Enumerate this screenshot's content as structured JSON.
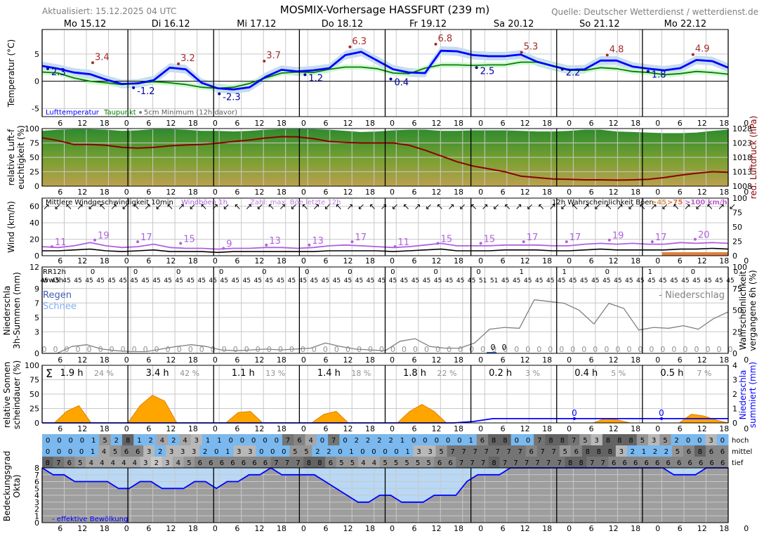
{
  "header": {
    "updated": "Aktualisiert: 15.12.2025 04 UTC",
    "title": "MOSMIX-Vorhersage HASSFURT (239 m)",
    "source": "Quelle: Deutscher Wetterdienst / wetterdienst.de"
  },
  "days": [
    "Mo 15.12",
    "Di 16.12",
    "Mi 17.12",
    "Do 18.12",
    "Fr 19.12",
    "Sa 20.12",
    "So 21.12",
    "Mo 22.12"
  ],
  "hour_ticks": [
    "6",
    "12",
    "18",
    "0",
    "6",
    "12",
    "18",
    "0",
    "6",
    "12",
    "18",
    "0",
    "6",
    "12",
    "18",
    "0",
    "6",
    "12",
    "18",
    "0",
    "6",
    "12",
    "18",
    "0",
    "6",
    "12",
    "18",
    "0",
    "6",
    "12",
    "18",
    "0"
  ],
  "colors": {
    "temp": "#0000ff",
    "dew": "#008000",
    "max": "#a52a2a",
    "min": "#0000a0",
    "pressure": "#8b0000",
    "gust": "#b060e0",
    "precip_line": "#808080",
    "sun": "#ffa500",
    "cloud_eff": "#0000ff"
  },
  "chart_data": [
    {
      "panel": "temperature",
      "type": "line",
      "ylabel": "Temperatur (°C)",
      "ylim": [
        -6.5,
        9.5
      ],
      "yticks": [
        "5",
        "0",
        "-5"
      ],
      "legend": {
        "temp": "Lufttemperatur",
        "dew": "Taupunkt",
        "min5cm": "5cm Minimum (12h davor)"
      },
      "series": [
        {
          "name": "Lufttemperatur",
          "values": [
            2.8,
            2.3,
            1.6,
            1.3,
            0.3,
            -0.5,
            -0.4,
            0.2,
            2.5,
            2.2,
            -0.3,
            -1.3,
            -1.5,
            -1.1,
            0.8,
            2.1,
            1.8,
            2.0,
            2.4,
            4.8,
            5.4,
            3.8,
            2.2,
            1.6,
            1.5,
            5.6,
            5.5,
            4.8,
            4.6,
            4.6,
            4.9,
            3.6,
            2.8,
            2.1,
            2.2,
            3.8,
            3.8,
            2.7,
            2.3,
            2.0,
            2.4,
            3.9,
            3.7,
            2.5
          ]
        },
        {
          "name": "Taupunkt",
          "values": [
            1.7,
            1.5,
            0.6,
            0.0,
            -0.3,
            -0.6,
            -0.3,
            -0.1,
            -0.3,
            -0.6,
            -1.1,
            -1.3,
            -1.1,
            -0.4,
            0.6,
            1.5,
            1.7,
            1.6,
            2.2,
            2.6,
            2.6,
            2.3,
            1.5,
            1.4,
            2.4,
            3.0,
            3.0,
            2.9,
            3.0,
            3.0,
            3.5,
            3.5,
            2.8,
            2.0,
            2.0,
            2.5,
            2.3,
            1.8,
            1.6,
            1.2,
            1.4,
            1.8,
            1.6,
            1.3
          ]
        }
      ],
      "max_labels": [
        "3.4",
        "3.2",
        "3.7",
        "6.3",
        "6.8",
        "5.3",
        "4.8",
        "4.9"
      ],
      "min_labels": [
        "2.3",
        "-1.2",
        "-2.3",
        "1.2",
        "0.4",
        "2.5",
        "2.2",
        "1.8"
      ]
    },
    {
      "panel": "humidity_pressure",
      "type": "area",
      "ylabel": "relative Luft-feuchtigkeit (%)",
      "y2label": "red. Luftdruck (hPa)",
      "ylim": [
        0,
        100
      ],
      "y2lim": [
        1008,
        1028
      ],
      "yticks": [
        "100",
        "75",
        "50",
        "25",
        "0"
      ],
      "y2ticks": [
        "1028",
        "1023",
        "1018",
        "1013",
        "1008"
      ],
      "series": [
        {
          "name": "rel. Feuchte",
          "values": [
            96,
            98,
            99,
            99,
            98,
            96,
            97,
            99,
            99,
            98,
            96,
            96,
            95,
            96,
            98,
            99,
            99,
            99,
            98,
            96,
            94,
            95,
            97,
            98,
            98,
            96,
            96,
            97,
            97,
            97,
            96,
            95,
            95,
            96,
            98,
            98,
            95,
            94,
            93,
            92,
            92,
            93,
            96,
            98
          ]
        },
        {
          "name": "Luftdruck",
          "values": [
            1024.8,
            1023.8,
            1022.5,
            1022.5,
            1022.2,
            1021.5,
            1021.2,
            1021.5,
            1022.0,
            1022.3,
            1022.5,
            1022.9,
            1023.5,
            1024.0,
            1024.7,
            1025.2,
            1025.1,
            1024.5,
            1023.5,
            1023.2,
            1023.0,
            1023.0,
            1023.0,
            1022.2,
            1020.5,
            1018.5,
            1016.5,
            1015.0,
            1014.0,
            1013.0,
            1011.5,
            1011.0,
            1010.5,
            1010.4,
            1010.2,
            1010.2,
            1010.1,
            1010.2,
            1010.4,
            1011.0,
            1011.8,
            1012.5,
            1013.0,
            1012.8
          ]
        }
      ]
    },
    {
      "panel": "wind",
      "type": "line",
      "ylabel": "Wind (km/h)",
      "ylim": [
        0,
        70
      ],
      "yticks": [
        "60",
        "40",
        "20",
        "0"
      ],
      "y2ticks": [
        "100",
        "75",
        "50",
        "25",
        "0"
      ],
      "legend": {
        "mean": "Mittlere Windgeschwindigkeit 10min",
        "gust": "Windböen 1h",
        "zahl": "Zahl: max. Böe letzte 12h",
        "prob": "12h Wahrscheinlichkeit Böen",
        "thresholds": [
          ">45",
          ">75",
          ">100 km/h"
        ]
      },
      "series": [
        {
          "name": "Windböen 1h",
          "values": [
            11,
            10,
            12,
            16,
            12,
            10,
            11,
            14,
            10,
            9,
            9,
            8,
            9,
            9,
            10,
            10,
            9,
            10,
            12,
            13,
            12,
            11,
            10,
            11,
            13,
            15,
            12,
            12,
            12,
            13,
            13,
            13,
            12,
            12,
            14,
            15,
            14,
            15,
            14,
            14,
            16,
            15,
            16,
            15
          ]
        },
        {
          "name": "Mittlere Windgeschwindigkeit",
          "values": [
            6,
            6,
            7,
            8,
            6,
            5,
            6,
            7,
            5,
            5,
            5,
            4,
            5,
            5,
            5,
            5,
            5,
            5,
            6,
            6,
            6,
            6,
            5,
            6,
            7,
            8,
            6,
            6,
            6,
            7,
            7,
            7,
            6,
            6,
            7,
            8,
            7,
            7,
            7,
            7,
            8,
            8,
            9,
            8
          ]
        }
      ],
      "max_gust_labels": [
        "11",
        "19",
        "17",
        "15",
        "9",
        "13",
        "13",
        "17",
        "11",
        "15",
        "15",
        "17",
        "17",
        "19",
        "17",
        "20"
      ]
    },
    {
      "panel": "precip",
      "type": "line",
      "ylabel": "Niederschlag 3h-Summen (mm)",
      "y2label": "Wahrscheinlichkeit vergangene 6h (%)",
      "ylim": [
        0,
        12
      ],
      "yticks": [
        "12",
        "9",
        "7",
        "5",
        "3",
        "0"
      ],
      "y2ticks": [
        "100",
        "75",
        "50",
        "25",
        "0"
      ],
      "legend": {
        "rain": "Regen",
        "snow": "Schnee",
        "prob": "- Niederschlag"
      },
      "rr12h_label": "RR12h",
      "ww3h_label": "ww3h",
      "rr12h": [
        "0",
        "0",
        "0",
        "0",
        "0",
        "0",
        "0",
        "0",
        "0",
        "0",
        "1",
        "1",
        "0",
        "1",
        "0",
        "0"
      ],
      "ww3h_code": "45",
      "ww3h_special": "51",
      "precip_amounts": [
        "0",
        "0"
      ],
      "series": [
        {
          "name": "Niederschlagswahrscheinlichkeit",
          "values": [
            4,
            4,
            3,
            2,
            2,
            2,
            2,
            4,
            3,
            5,
            5,
            2,
            2,
            5,
            8,
            3,
            3,
            12,
            13,
            22,
            24,
            44,
            52,
            44,
            37,
            34,
            25,
            30,
            25,
            20,
            15,
            10,
            8,
            5,
            10,
            12,
            22,
            30,
            45,
            28,
            5,
            5,
            4,
            4,
            3,
            2,
            20,
            11,
            12,
            14,
            4,
            13,
            13,
            24
          ]
        }
      ]
    },
    {
      "panel": "sunshine",
      "type": "area",
      "ylabel": "relative Sonnen-scheindauer (%)",
      "y2label": "Niederschlag summiert (mm)",
      "ylim": [
        0,
        100
      ],
      "yticks": [
        "100",
        "75",
        "50",
        "25",
        "0"
      ],
      "y2ticks": [
        "4",
        "3",
        "2",
        "1",
        "0"
      ],
      "sigma": "Σ",
      "day_sums": [
        "1.9 h",
        "3.4 h",
        "1.1 h",
        "1.4 h",
        "1.8 h",
        "0.2 h",
        "0.4 h",
        "0.5 h"
      ],
      "day_percent": [
        "24 %",
        "42 %",
        "13 %",
        "18 %",
        "22 %",
        "3 %",
        "5 %",
        "7 %"
      ],
      "cum_precip_labels": [
        "0",
        "0"
      ],
      "series": [
        {
          "name": "Sonnenscheindauer",
          "values": [
            0,
            0,
            20,
            30,
            0,
            0,
            0,
            0,
            30,
            48,
            38,
            0,
            0,
            0,
            0,
            0,
            18,
            20,
            0,
            0,
            0,
            0,
            0,
            15,
            20,
            0,
            0,
            0,
            0,
            0,
            20,
            32,
            20,
            0,
            0,
            0,
            0,
            0,
            0,
            0,
            0,
            0,
            0,
            0,
            0,
            0,
            8,
            5,
            0,
            0,
            0,
            0,
            0,
            15,
            12,
            5,
            0
          ]
        },
        {
          "name": "Niederschlag summiert",
          "values": [
            0,
            0,
            0,
            0,
            0,
            0,
            0,
            0,
            0,
            0,
            0,
            0,
            0,
            0,
            0,
            0,
            0,
            0,
            0,
            0,
            0,
            0,
            0.1,
            0.3,
            0.3,
            0.3,
            0.3,
            0.3,
            0.3,
            0.3,
            0.3,
            0.3,
            0.3,
            0.3,
            0.3,
            0.3
          ]
        }
      ]
    },
    {
      "panel": "clouds",
      "type": "heatmap",
      "ylabel": "Bedeckungsgrad (Okta)",
      "ylim": [
        0,
        8
      ],
      "yticks": [
        "8",
        "7",
        "6",
        "5",
        "4",
        "3",
        "2",
        "1",
        "0"
      ],
      "row_labels": [
        "hoch",
        "mittel",
        "tief"
      ],
      "legend": "- effektive Bewölkung",
      "hoch": [
        "0",
        "0",
        "0",
        "0",
        "1",
        "5",
        "2",
        "8",
        "1",
        "2",
        "4",
        "2",
        "4",
        "3",
        "1",
        "1",
        "0",
        "0",
        "0",
        "0",
        "0",
        "7",
        "6",
        "4",
        "0",
        "7",
        "0",
        "2",
        "2",
        "2",
        "2",
        "1",
        "0",
        "0",
        "0",
        "0",
        "0",
        "1",
        "6",
        "8",
        "8",
        "0",
        "0",
        "7",
        "8",
        "8",
        "7",
        "5",
        "3",
        "8",
        "8",
        "8",
        "5",
        "3",
        "5",
        "2",
        "0",
        "0",
        "3",
        "0"
      ],
      "mittel": [
        "0",
        "0",
        "0",
        "0",
        "1",
        "4",
        "5",
        "6",
        "6",
        "3",
        "2",
        "3",
        "3",
        "3",
        "2",
        "0",
        "1",
        "3",
        "3",
        "0",
        "0",
        "0",
        "5",
        "5",
        "2",
        "2",
        "0",
        "1",
        "0",
        "0",
        "0",
        "0",
        "1",
        "3",
        "3",
        "5",
        "7",
        "7",
        "7",
        "7",
        "7",
        "7",
        "7",
        "6",
        "7",
        "7",
        "5",
        "6",
        "8",
        "8",
        "8",
        "3",
        "2",
        "1",
        "2",
        "2",
        "5",
        "6",
        "8",
        "6",
        "6"
      ],
      "tief": [
        "8",
        "7",
        "6",
        "5",
        "4",
        "4",
        "4",
        "4",
        "4",
        "3",
        "2",
        "3",
        "4",
        "5",
        "6",
        "6",
        "6",
        "6",
        "6",
        "6",
        "6",
        "7",
        "7",
        "7",
        "8",
        "8",
        "6",
        "5",
        "5",
        "4",
        "4",
        "5",
        "5",
        "5",
        "5",
        "5",
        "6",
        "6",
        "7",
        "7",
        "7",
        "8",
        "7",
        "7",
        "7",
        "7",
        "7",
        "7",
        "8",
        "8",
        "7",
        "7",
        "6",
        "6",
        "6",
        "6",
        "6",
        "6",
        "6",
        "6",
        "6",
        "6",
        "6"
      ],
      "series": [
        {
          "name": "effektive Bewölkung",
          "values": [
            8,
            7,
            7,
            6,
            6,
            6,
            6,
            5,
            5,
            6,
            6,
            5,
            5,
            5,
            6,
            6,
            5,
            6,
            6,
            7,
            7,
            8,
            7,
            7,
            7,
            7,
            6,
            5,
            4,
            3,
            3,
            4,
            4,
            3,
            3,
            3,
            4,
            4,
            4,
            6,
            7,
            7,
            7,
            8,
            8,
            8,
            8,
            8,
            8,
            8,
            8,
            8,
            8,
            8,
            8,
            8,
            8,
            8,
            7,
            7,
            7,
            8,
            8,
            8
          ]
        }
      ]
    }
  ]
}
